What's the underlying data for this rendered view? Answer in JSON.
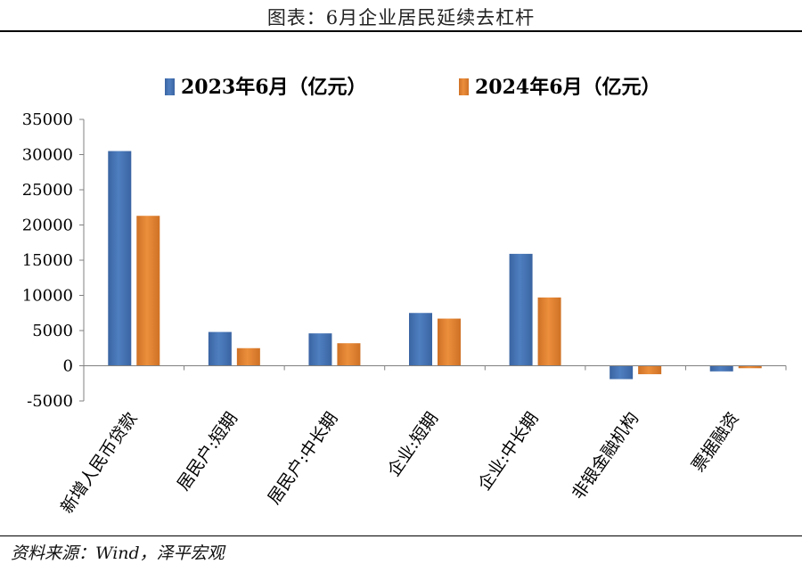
{
  "header": {
    "title": "图表：6月企业居民延续去杠杆"
  },
  "footer": {
    "source": "资料来源：Wind，泽平宏观"
  },
  "colors": {
    "series1": "#4f7fc0",
    "series1_dark": "#3a64a2",
    "series2": "#ec8f3c",
    "series2_dark": "#cf7125",
    "axis": "#808080"
  },
  "chart_data": {
    "type": "bar",
    "title": "",
    "xlabel": "",
    "ylabel": "",
    "ylim": [
      -5000,
      35000
    ],
    "yticks": [
      -5000,
      0,
      5000,
      10000,
      15000,
      20000,
      25000,
      30000,
      35000
    ],
    "grid": false,
    "legend": "top-center",
    "categories": [
      "新增人民币贷款",
      "居民户:短期",
      "居民户:中长期",
      "企业:短期",
      "企业:中长期",
      "非银金融机构",
      "票据融资"
    ],
    "series": [
      {
        "name": "2023年6月（亿元）",
        "values": [
          30500,
          4800,
          4600,
          7500,
          15900,
          -1900,
          -800
        ]
      },
      {
        "name": "2024年6月（亿元）",
        "values": [
          21300,
          2500,
          3200,
          6700,
          9700,
          -1200,
          -350
        ]
      }
    ]
  }
}
